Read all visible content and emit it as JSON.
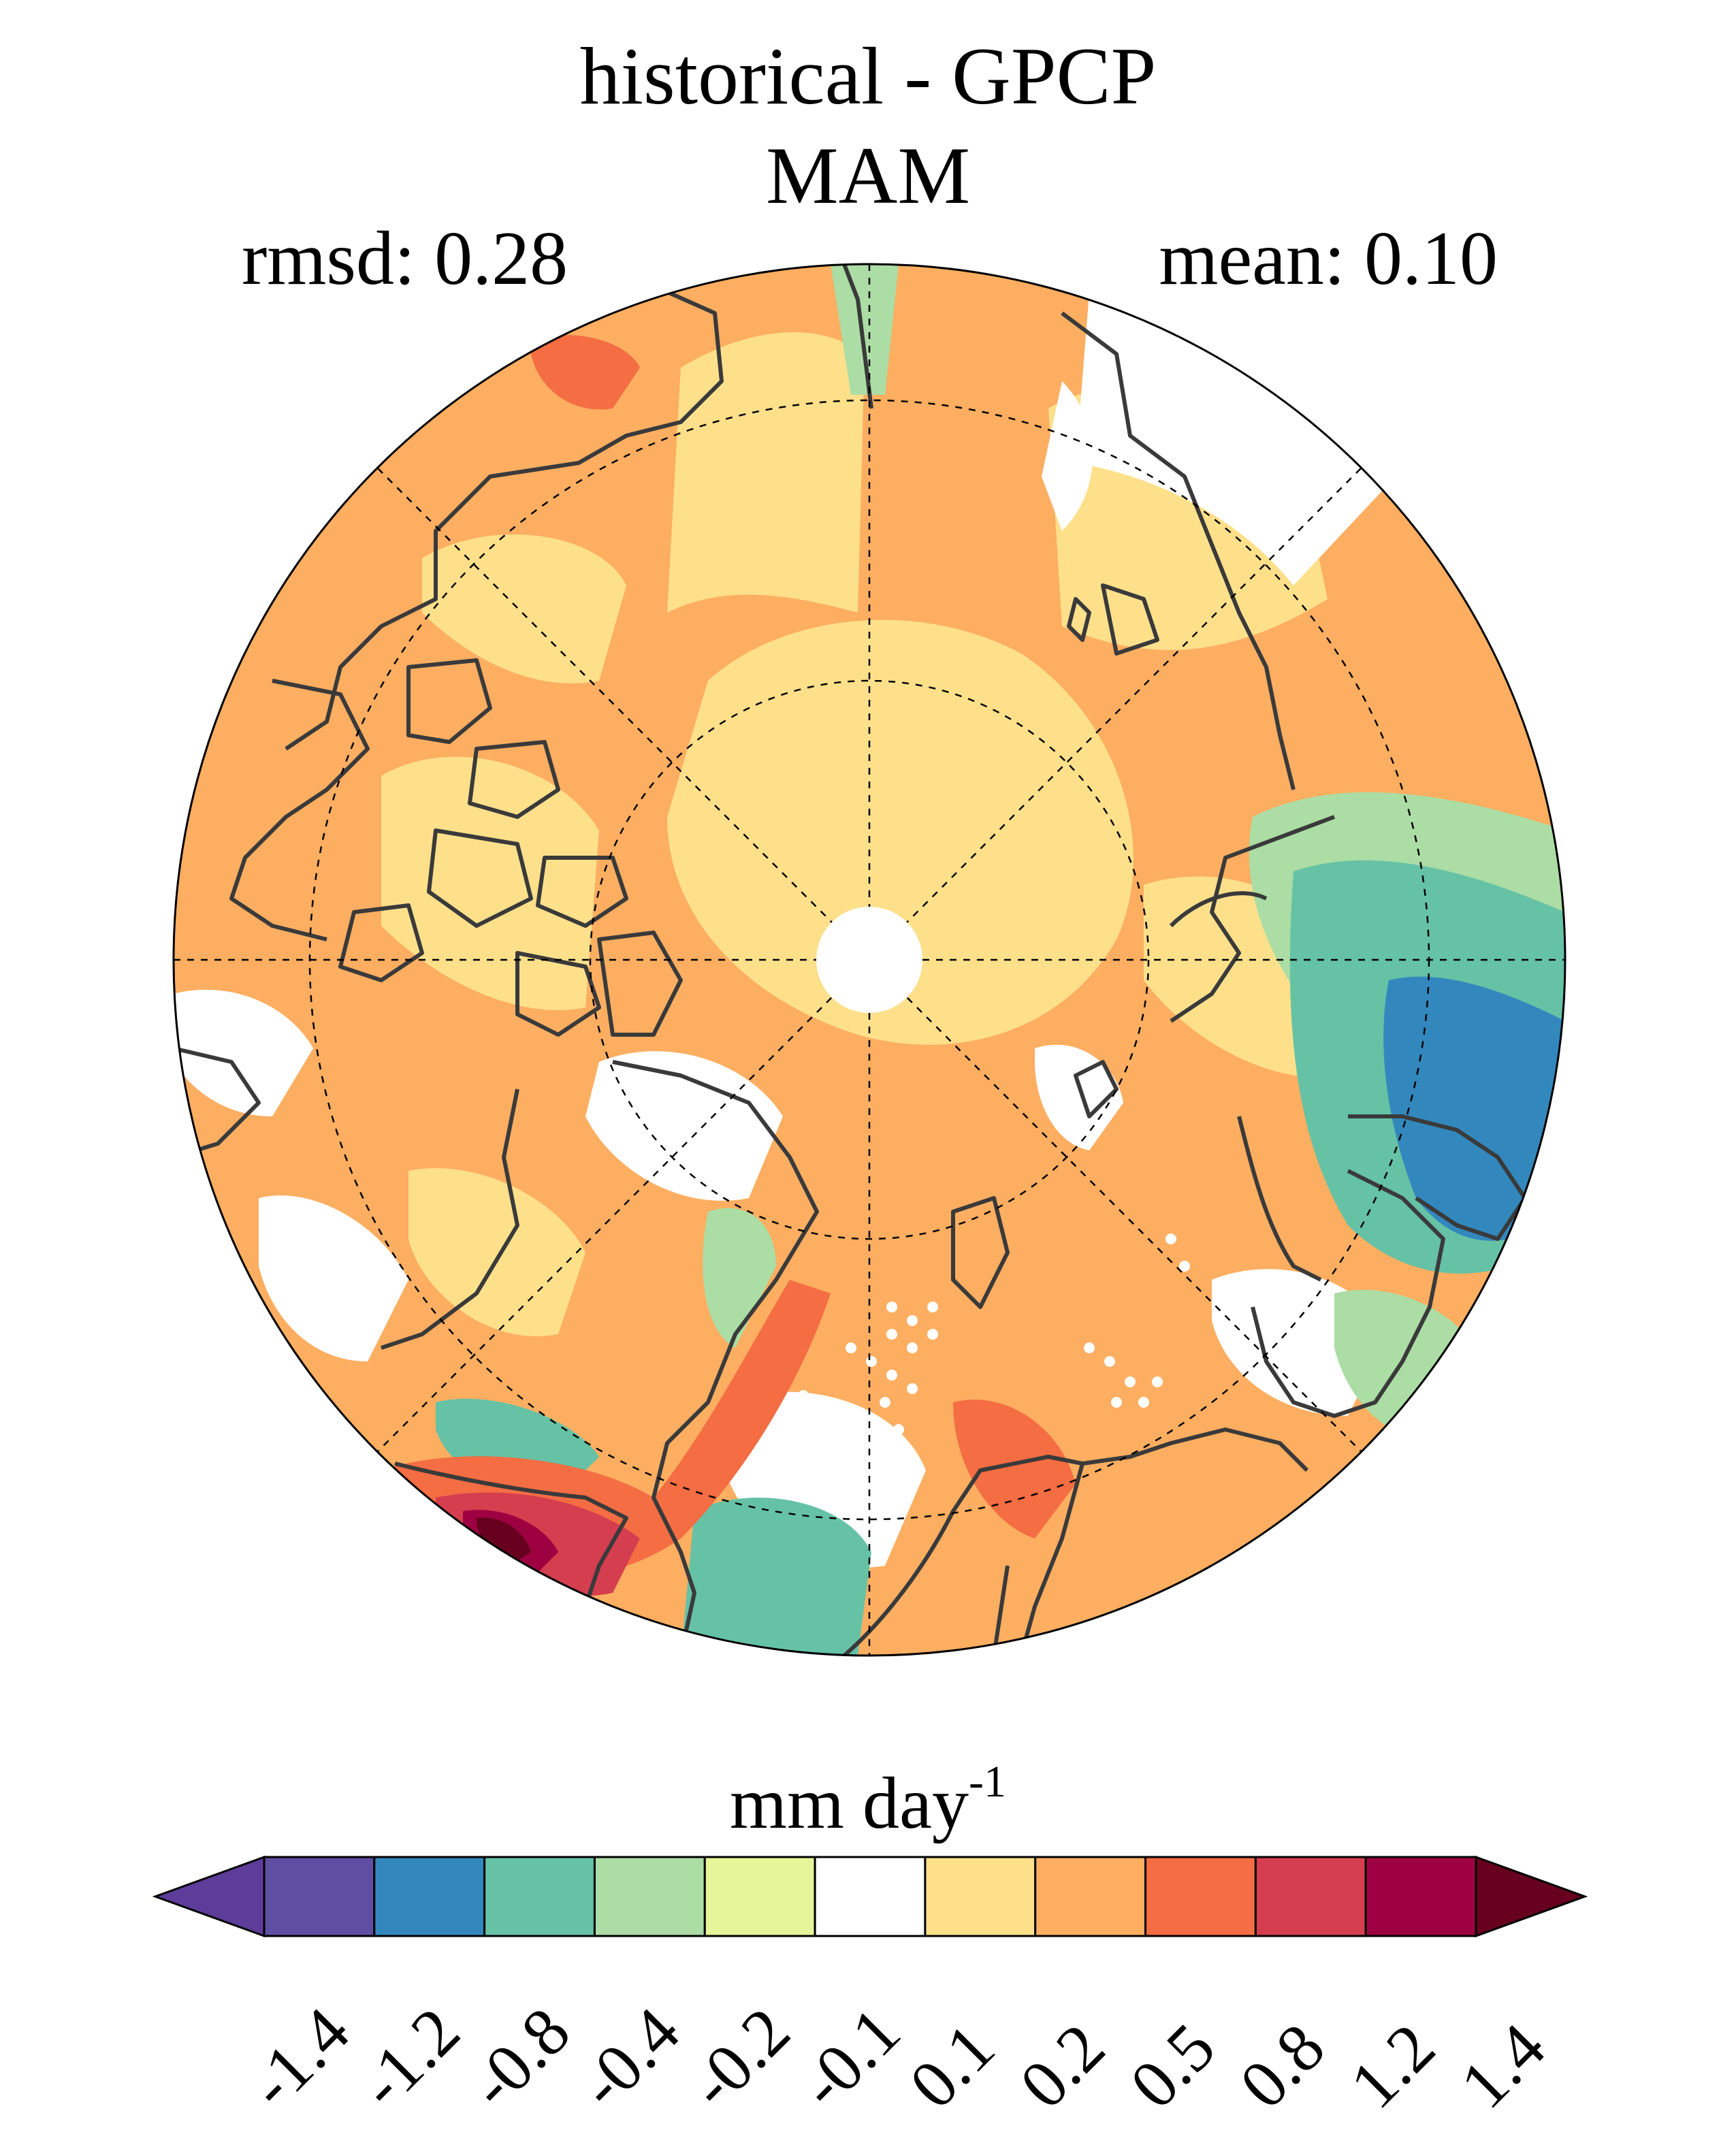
{
  "figure": {
    "title_line1": "historical - GPCP",
    "title_line2": "MAM",
    "rmsd_text": "rmsd: 0.28",
    "mean_text": "mean: 0.10"
  },
  "map": {
    "projection": "north-polar-stereographic",
    "graticule": "dashed",
    "colors": {
      "ocean_land_base": "#fdae61",
      "light_orange": "#fee08b",
      "coastline": "#3a3a3a",
      "no_data": "#ffffff"
    }
  },
  "colorbar": {
    "units_main": "mm day",
    "units_exp": "-1",
    "tick_labels": [
      "-1.4",
      "-1.2",
      "-0.8",
      "-0.4",
      "-0.2",
      "-0.1",
      "0.1",
      "0.2",
      "0.5",
      "0.8",
      "1.2",
      "1.4"
    ],
    "colors": [
      "#5e3c99",
      "#5e4fa2",
      "#3288bd",
      "#66c2a5",
      "#abdda4",
      "#e6f598",
      "#ffffff",
      "#fee08b",
      "#fdae61",
      "#f46d43",
      "#d53e4f",
      "#9e0142",
      "#67001f"
    ]
  }
}
